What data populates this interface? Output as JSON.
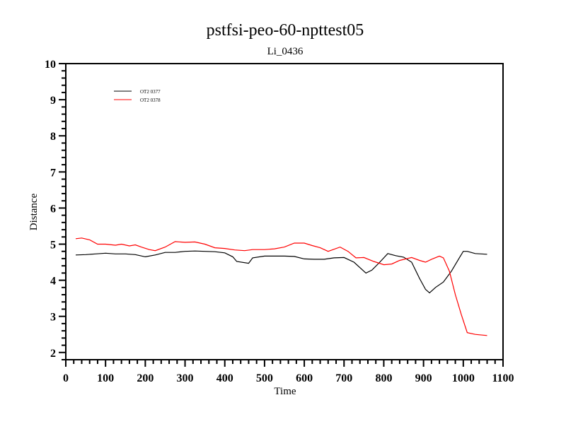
{
  "chart_data": {
    "type": "line",
    "title": "pstfsi-peo-60-npttest05",
    "subtitle": "Li_0436",
    "xlabel": "Time",
    "ylabel": "Distance",
    "xlim": [
      0,
      1100
    ],
    "ylim": [
      1.8,
      10
    ],
    "xticks": [
      0,
      100,
      200,
      300,
      400,
      500,
      600,
      700,
      800,
      900,
      1000,
      1100
    ],
    "yticks": [
      2,
      3,
      4,
      5,
      6,
      7,
      8,
      9,
      10
    ],
    "grid": false,
    "legend_position": "top-left",
    "series": [
      {
        "name": "OT2 0377",
        "color": "#000000",
        "x": [
          25,
          50,
          75,
          100,
          125,
          150,
          175,
          200,
          225,
          250,
          275,
          300,
          325,
          350,
          375,
          400,
          420,
          430,
          460,
          470,
          500,
          550,
          575,
          600,
          625,
          650,
          675,
          700,
          725,
          740,
          755,
          770,
          790,
          810,
          830,
          850,
          870,
          890,
          905,
          915,
          930,
          950,
          970,
          990,
          1000,
          1010,
          1030,
          1060
        ],
        "y": [
          4.7,
          4.71,
          4.73,
          4.75,
          4.73,
          4.73,
          4.71,
          4.65,
          4.7,
          4.77,
          4.77,
          4.8,
          4.81,
          4.8,
          4.79,
          4.76,
          4.65,
          4.52,
          4.47,
          4.62,
          4.67,
          4.67,
          4.66,
          4.59,
          4.58,
          4.58,
          4.62,
          4.63,
          4.5,
          4.35,
          4.2,
          4.28,
          4.5,
          4.74,
          4.68,
          4.64,
          4.5,
          4.05,
          3.75,
          3.65,
          3.8,
          3.95,
          4.25,
          4.62,
          4.8,
          4.8,
          4.74,
          4.72
        ]
      },
      {
        "name": "OT2 0378",
        "color": "#ff0000",
        "x": [
          25,
          40,
          60,
          80,
          100,
          125,
          140,
          160,
          175,
          190,
          210,
          225,
          250,
          275,
          300,
          325,
          350,
          375,
          400,
          425,
          450,
          470,
          500,
          525,
          550,
          575,
          600,
          620,
          640,
          660,
          690,
          710,
          730,
          750,
          775,
          800,
          820,
          840,
          870,
          890,
          905,
          920,
          940,
          950,
          965,
          980,
          995,
          1010,
          1030,
          1060
        ],
        "y": [
          5.15,
          5.17,
          5.12,
          5.0,
          5.0,
          4.97,
          5.0,
          4.95,
          4.98,
          4.92,
          4.85,
          4.82,
          4.92,
          5.07,
          5.05,
          5.06,
          5.0,
          4.9,
          4.88,
          4.84,
          4.82,
          4.85,
          4.85,
          4.87,
          4.92,
          5.03,
          5.03,
          4.96,
          4.9,
          4.8,
          4.92,
          4.8,
          4.62,
          4.63,
          4.52,
          4.43,
          4.45,
          4.55,
          4.63,
          4.55,
          4.5,
          4.58,
          4.67,
          4.62,
          4.25,
          3.6,
          3.05,
          2.55,
          2.5,
          2.47
        ]
      }
    ]
  }
}
